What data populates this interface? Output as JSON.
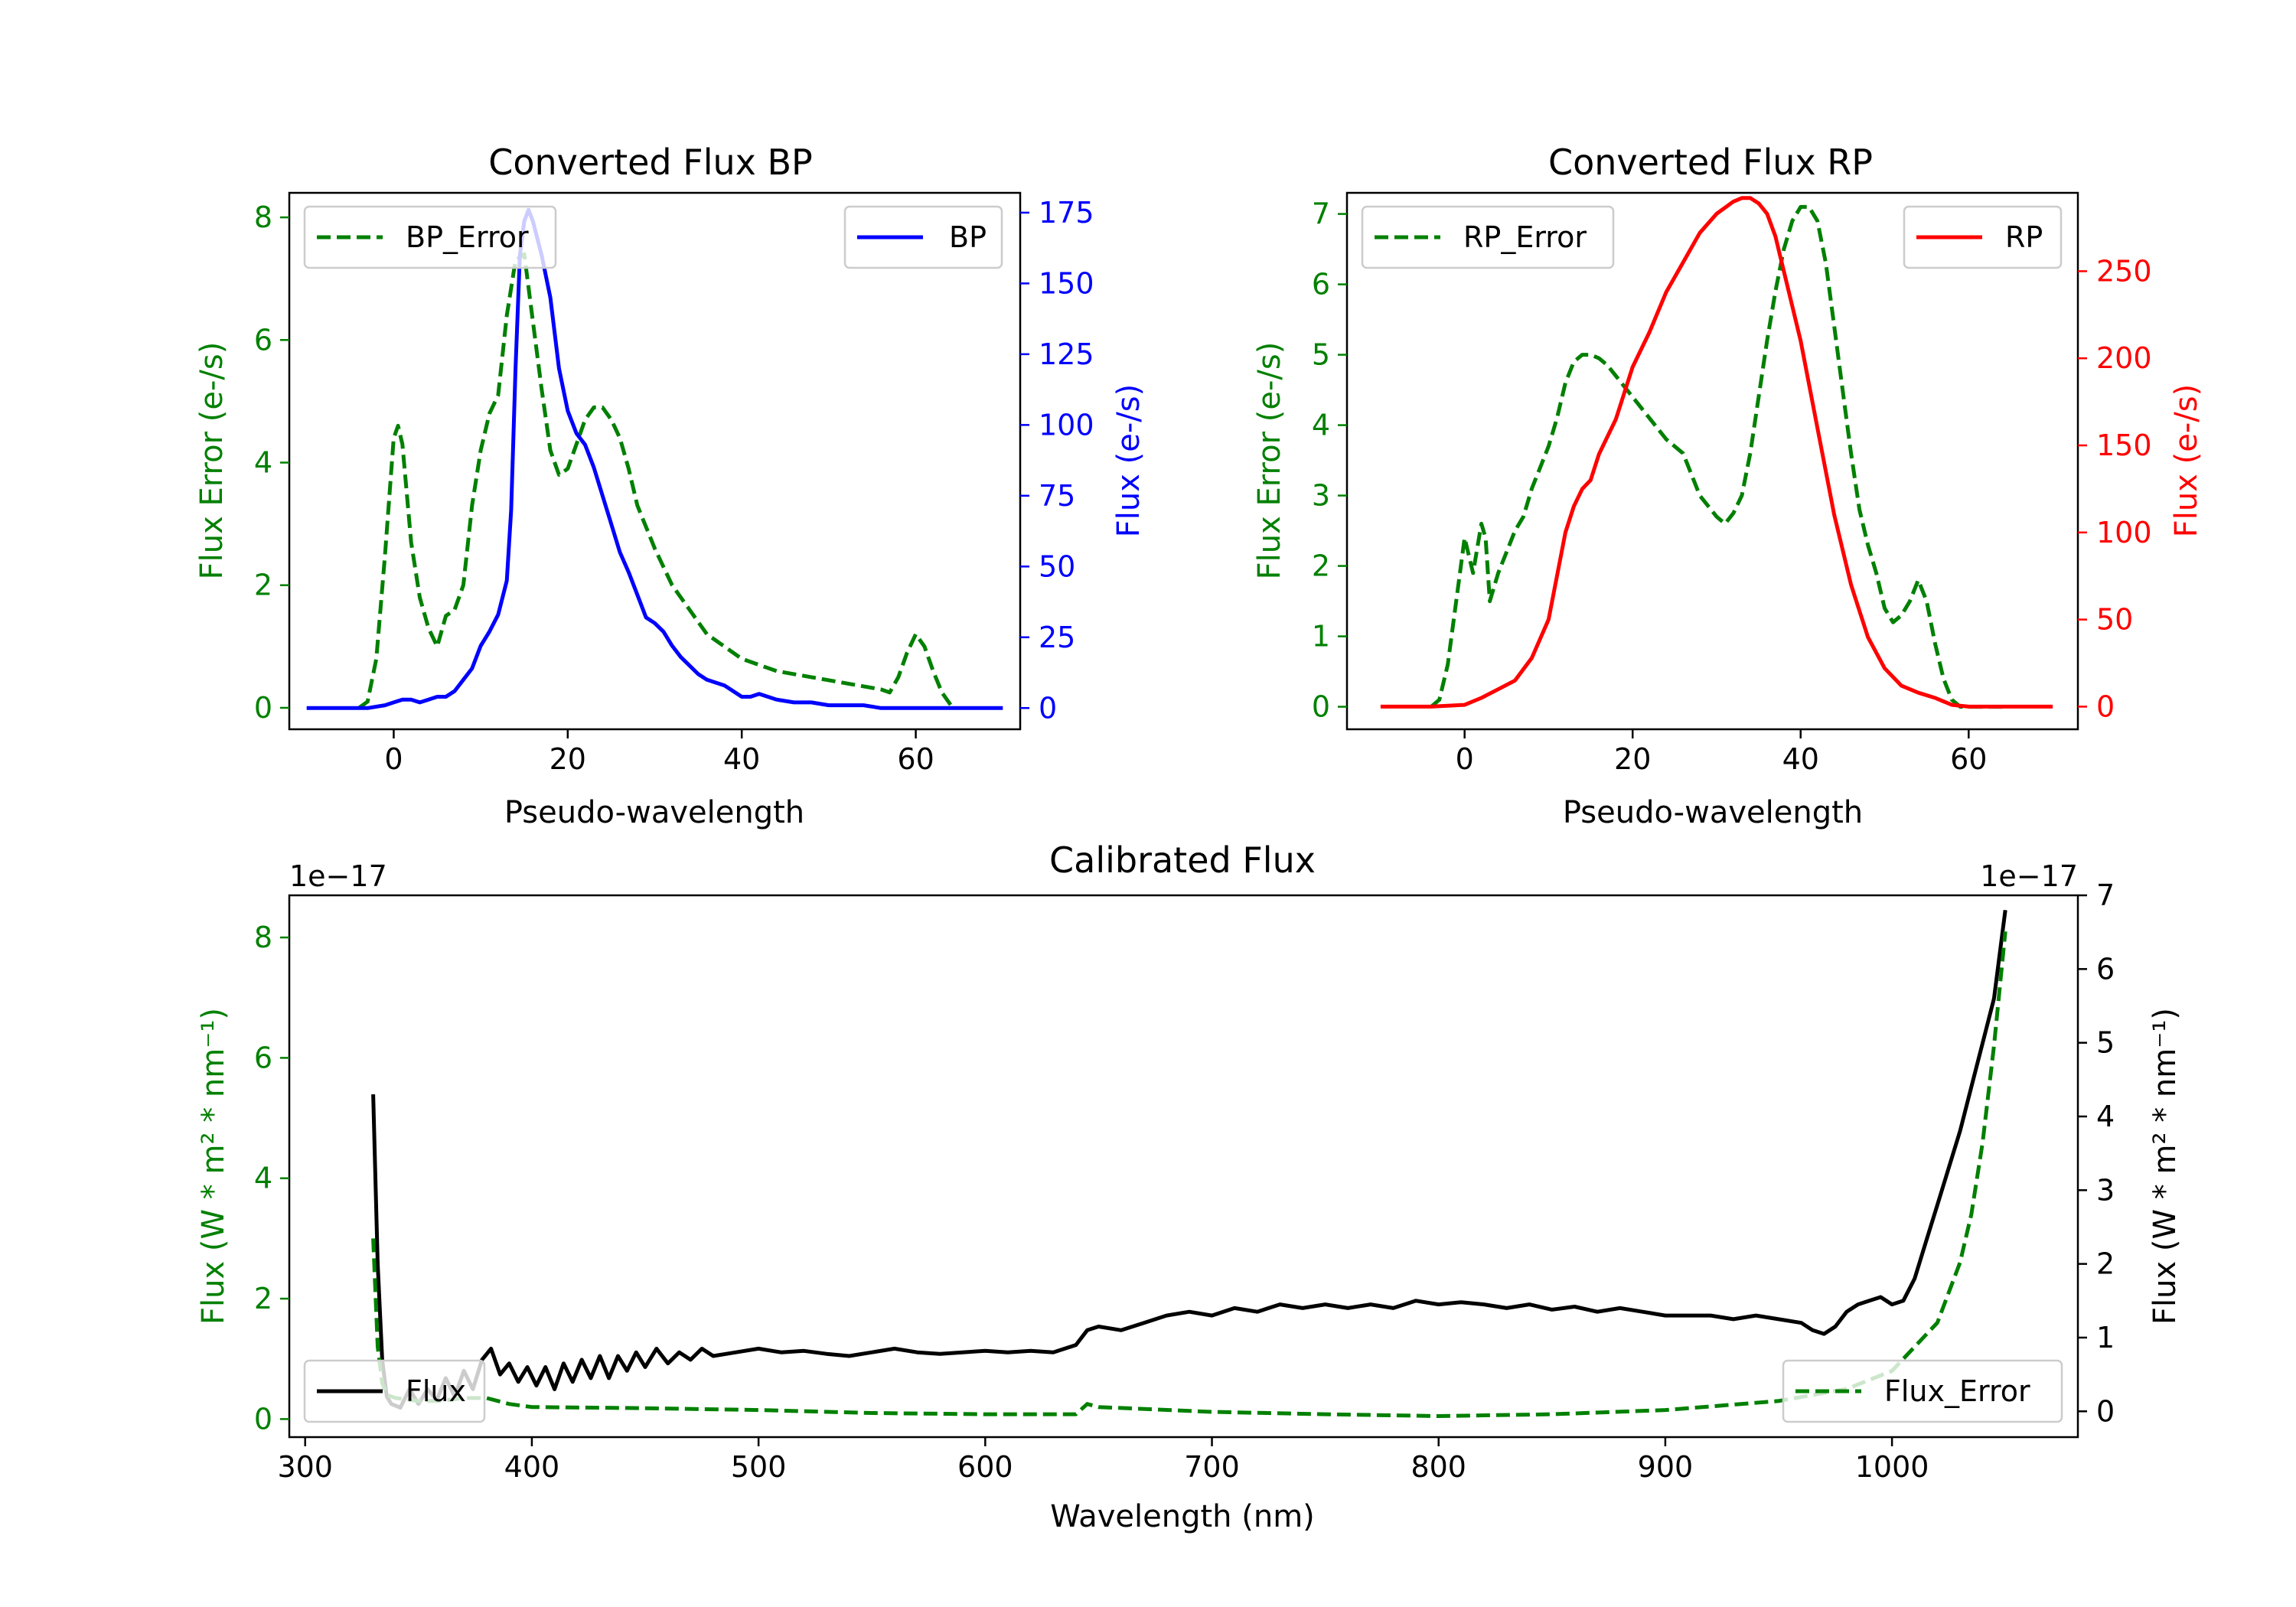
{
  "colors": {
    "green": "#008000",
    "blue": "#0000ff",
    "red": "#ff0000",
    "black": "#000000"
  },
  "chart_data": [
    {
      "id": "bp",
      "type": "line",
      "title": "Converted Flux BP",
      "xlabel": "Pseudo-wavelength",
      "ylabel_left": "Flux Error (e-/s)",
      "ylabel_right": "Flux (e-/s)",
      "xlim": [
        -12,
        72
      ],
      "xticks": [
        0,
        20,
        40,
        60
      ],
      "ylim_left": [
        -0.35,
        8.4
      ],
      "yticks_left": [
        0,
        2,
        4,
        6,
        8
      ],
      "ylim_right": [
        -7.5,
        182
      ],
      "yticks_right": [
        0,
        25,
        50,
        75,
        100,
        125,
        150,
        175
      ],
      "legend_left": "BP_Error",
      "legend_right": "BP",
      "series": [
        {
          "name": "BP_Error",
          "axis": "left",
          "style": "dashed",
          "color": "green",
          "x": [
            -4,
            -3,
            -2,
            -1,
            0,
            0.5,
            1,
            2,
            3,
            4,
            5,
            6,
            7,
            8,
            9,
            10,
            11,
            12,
            13,
            14,
            15,
            16,
            17,
            18,
            19,
            20,
            21,
            22,
            23,
            24,
            25,
            26,
            27,
            28,
            30,
            32,
            34,
            36,
            38,
            40,
            42,
            44,
            46,
            48,
            50,
            52,
            54,
            56,
            57,
            58,
            59,
            60,
            61,
            62,
            63,
            64
          ],
          "y": [
            0,
            0.1,
            0.8,
            2.5,
            4.4,
            4.6,
            4.3,
            2.7,
            1.8,
            1.3,
            1.0,
            1.5,
            1.6,
            2.0,
            3.3,
            4.2,
            4.8,
            5.1,
            6.4,
            7.3,
            7.4,
            6.3,
            5.2,
            4.2,
            3.8,
            3.9,
            4.3,
            4.7,
            4.9,
            4.9,
            4.7,
            4.4,
            3.9,
            3.3,
            2.6,
            2.0,
            1.6,
            1.2,
            1.0,
            0.8,
            0.7,
            0.6,
            0.55,
            0.5,
            0.45,
            0.4,
            0.35,
            0.3,
            0.25,
            0.5,
            0.9,
            1.2,
            1.0,
            0.6,
            0.25,
            0.05
          ]
        },
        {
          "name": "BP",
          "axis": "right",
          "style": "solid",
          "color": "blue",
          "x": [
            -10,
            -6,
            -3,
            -1,
            0,
            1,
            2,
            3,
            4,
            5,
            6,
            7,
            8,
            9,
            10,
            11,
            12,
            13,
            13.5,
            14,
            14.5,
            15,
            15.5,
            16,
            17,
            18,
            19,
            20,
            21,
            22,
            23,
            24,
            25,
            26,
            27,
            28,
            29,
            30,
            31,
            32,
            33,
            34,
            35,
            36,
            38,
            40,
            41,
            42,
            43,
            44,
            46,
            48,
            50,
            52,
            54,
            56,
            58,
            60,
            62,
            64,
            66,
            68,
            70
          ],
          "y": [
            0,
            0,
            0,
            1,
            2,
            3,
            3,
            2,
            3,
            4,
            4,
            6,
            10,
            14,
            22,
            27,
            33,
            45,
            70,
            120,
            160,
            172,
            176,
            172,
            160,
            145,
            120,
            105,
            97,
            93,
            85,
            75,
            65,
            55,
            48,
            40,
            32,
            30,
            27,
            22,
            18,
            15,
            12,
            10,
            8,
            4,
            4,
            5,
            4,
            3,
            2,
            2,
            1,
            1,
            1,
            0,
            0,
            0,
            0,
            0,
            0,
            0,
            0
          ]
        }
      ]
    },
    {
      "id": "rp",
      "type": "line",
      "title": "Converted Flux RP",
      "xlabel": "Pseudo-wavelength",
      "ylabel_left": "Flux Error (e-/s)",
      "ylabel_right": "Flux (e-/s)",
      "xlim": [
        -14,
        73
      ],
      "xticks": [
        0,
        20,
        40,
        60
      ],
      "ylim_left": [
        -0.32,
        7.3
      ],
      "yticks_left": [
        0,
        1,
        2,
        3,
        4,
        5,
        6,
        7
      ],
      "ylim_right": [
        -13,
        295
      ],
      "yticks_right": [
        0,
        50,
        100,
        150,
        200,
        250
      ],
      "legend_left": "RP_Error",
      "legend_right": "RP",
      "series": [
        {
          "name": "RP_Error",
          "axis": "left",
          "style": "dashed",
          "color": "green",
          "x": [
            -4,
            -3,
            -2,
            -1,
            0,
            1,
            2,
            2.5,
            3,
            4,
            5,
            6,
            7,
            8,
            9,
            10,
            11,
            12,
            13,
            14,
            15,
            16,
            17,
            18,
            20,
            22,
            24,
            26,
            27,
            28,
            30,
            31,
            32,
            33,
            34,
            35,
            36,
            37,
            38,
            39,
            40,
            41,
            42,
            43,
            44,
            45,
            46,
            47,
            48,
            49,
            50,
            51,
            52,
            53,
            54,
            55,
            56,
            57,
            58,
            59,
            60,
            61,
            62,
            63,
            64
          ],
          "y": [
            0,
            0.1,
            0.6,
            1.5,
            2.4,
            1.9,
            2.6,
            2.4,
            1.5,
            1.9,
            2.2,
            2.5,
            2.7,
            3.1,
            3.4,
            3.7,
            4.1,
            4.6,
            4.9,
            5.0,
            5.0,
            4.95,
            4.85,
            4.7,
            4.4,
            4.1,
            3.8,
            3.6,
            3.3,
            3.0,
            2.7,
            2.6,
            2.75,
            3.0,
            3.6,
            4.4,
            5.2,
            5.9,
            6.5,
            6.9,
            7.1,
            7.1,
            6.9,
            6.3,
            5.4,
            4.5,
            3.6,
            2.8,
            2.3,
            1.9,
            1.4,
            1.2,
            1.3,
            1.5,
            1.8,
            1.5,
            0.9,
            0.4,
            0.1,
            0,
            0,
            0,
            0,
            0,
            0
          ]
        },
        {
          "name": "RP",
          "axis": "right",
          "style": "solid",
          "color": "red",
          "x": [
            -10,
            -4,
            0,
            2,
            4,
            6,
            8,
            10,
            12,
            13,
            14,
            15,
            16,
            18,
            20,
            22,
            24,
            26,
            28,
            30,
            32,
            33,
            34,
            35,
            36,
            37,
            38,
            39,
            40,
            42,
            44,
            46,
            48,
            50,
            52,
            54,
            56,
            58,
            60,
            62,
            64,
            66,
            68,
            70
          ],
          "y": [
            0,
            0,
            1,
            5,
            10,
            15,
            28,
            50,
            100,
            115,
            125,
            130,
            145,
            165,
            195,
            215,
            238,
            255,
            272,
            283,
            290,
            292,
            292,
            289,
            283,
            270,
            250,
            230,
            210,
            160,
            110,
            70,
            40,
            22,
            12,
            8,
            5,
            1,
            0,
            0,
            0,
            0,
            0,
            0
          ]
        }
      ]
    },
    {
      "id": "cal",
      "type": "line",
      "title": "Calibrated Flux",
      "xlabel": "Wavelength (nm)",
      "ylabel_left": "Flux (W * m² * nm⁻¹)",
      "ylabel_right": "Flux (W * m² * nm⁻¹)",
      "offset_left": "1e−17",
      "offset_right": "1e−17",
      "xlim": [
        293,
        1082
      ],
      "xticks": [
        300,
        400,
        500,
        600,
        700,
        800,
        900,
        1000
      ],
      "ylim_left": [
        -0.3,
        8.7
      ],
      "yticks_left": [
        0,
        2,
        4,
        6,
        8
      ],
      "ylim_right": [
        -0.35,
        7.0
      ],
      "yticks_right": [
        0,
        1,
        2,
        3,
        4,
        5,
        6,
        7
      ],
      "legend_left": "Flux",
      "legend_right": "Flux_Error",
      "series": [
        {
          "name": "Flux",
          "axis": "right",
          "style": "solid",
          "color": "black",
          "x": [
            330,
            332,
            334,
            336,
            338,
            342,
            346,
            350,
            354,
            358,
            362,
            366,
            370,
            374,
            378,
            382,
            386,
            390,
            394,
            398,
            402,
            406,
            410,
            414,
            418,
            422,
            426,
            430,
            434,
            438,
            442,
            446,
            450,
            455,
            460,
            465,
            470,
            475,
            480,
            490,
            500,
            510,
            520,
            530,
            540,
            550,
            560,
            570,
            580,
            590,
            600,
            610,
            620,
            630,
            640,
            645,
            650,
            660,
            670,
            680,
            690,
            700,
            710,
            720,
            730,
            740,
            750,
            760,
            770,
            780,
            790,
            800,
            810,
            820,
            830,
            840,
            850,
            860,
            870,
            880,
            890,
            900,
            910,
            920,
            930,
            940,
            950,
            960,
            965,
            970,
            975,
            980,
            985,
            990,
            995,
            1000,
            1005,
            1010,
            1015,
            1020,
            1025,
            1030,
            1035,
            1040,
            1045,
            1050
          ],
          "y": [
            4.3,
            2.0,
            0.7,
            0.2,
            0.1,
            0.05,
            0.3,
            0.1,
            0.3,
            0.15,
            0.45,
            0.2,
            0.55,
            0.3,
            0.7,
            0.85,
            0.5,
            0.65,
            0.4,
            0.6,
            0.35,
            0.6,
            0.3,
            0.65,
            0.4,
            0.7,
            0.45,
            0.75,
            0.45,
            0.75,
            0.55,
            0.8,
            0.6,
            0.85,
            0.65,
            0.8,
            0.7,
            0.85,
            0.75,
            0.8,
            0.85,
            0.8,
            0.82,
            0.78,
            0.75,
            0.8,
            0.85,
            0.8,
            0.78,
            0.8,
            0.82,
            0.8,
            0.82,
            0.8,
            0.9,
            1.1,
            1.15,
            1.1,
            1.2,
            1.3,
            1.35,
            1.3,
            1.4,
            1.35,
            1.45,
            1.4,
            1.45,
            1.4,
            1.45,
            1.4,
            1.5,
            1.45,
            1.48,
            1.45,
            1.4,
            1.45,
            1.38,
            1.42,
            1.35,
            1.4,
            1.35,
            1.3,
            1.3,
            1.3,
            1.25,
            1.3,
            1.25,
            1.2,
            1.1,
            1.05,
            1.15,
            1.35,
            1.45,
            1.5,
            1.55,
            1.45,
            1.5,
            1.8,
            2.3,
            2.8,
            3.3,
            3.8,
            4.4,
            5.0,
            5.6,
            6.8
          ]
        },
        {
          "name": "Flux_Error",
          "axis": "left",
          "style": "dashed",
          "color": "green",
          "x": [
            330,
            332,
            334,
            336,
            340,
            350,
            360,
            370,
            380,
            390,
            400,
            450,
            500,
            550,
            600,
            640,
            645,
            650,
            700,
            750,
            800,
            850,
            900,
            950,
            980,
            1000,
            1010,
            1020,
            1030,
            1035,
            1040,
            1045,
            1050
          ],
          "y": [
            3.0,
            1.2,
            0.6,
            0.4,
            0.35,
            0.3,
            0.3,
            0.35,
            0.35,
            0.25,
            0.2,
            0.18,
            0.15,
            0.1,
            0.08,
            0.08,
            0.25,
            0.2,
            0.12,
            0.08,
            0.05,
            0.08,
            0.15,
            0.3,
            0.5,
            0.8,
            1.2,
            1.6,
            2.6,
            3.4,
            4.6,
            6.2,
            8.1
          ]
        }
      ]
    }
  ]
}
